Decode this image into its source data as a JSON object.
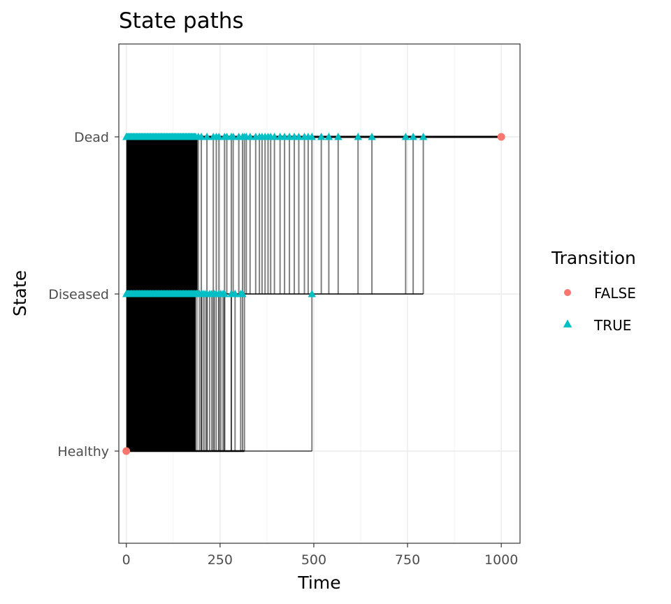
{
  "chart_data": {
    "type": "line",
    "title": "State paths",
    "xlabel": "Time",
    "ylabel": "State",
    "xlim": [
      -20,
      1050
    ],
    "x_ticks": [
      0,
      250,
      500,
      750,
      1000
    ],
    "states": [
      "Healthy",
      "Diseased",
      "Dead"
    ],
    "grid": true,
    "legend": {
      "title": "Transition",
      "placement": "right",
      "entries": [
        {
          "label": "FALSE",
          "shape": "circle",
          "color": "#F8766D"
        },
        {
          "label": "TRUE",
          "shape": "triangle",
          "color": "#00BFC4"
        }
      ]
    },
    "colors": {
      "false": "#F8766D",
      "true": "#00BFC4",
      "path": "#000000"
    },
    "dense_hd_range": [
      0,
      185
    ],
    "dense_dd_range": [
      0,
      190
    ],
    "healthy_to_diseased_times": [
      188,
      195,
      200,
      205,
      210,
      215,
      222,
      228,
      235,
      240,
      247,
      252,
      258,
      262,
      280,
      290,
      305,
      310,
      495
    ],
    "healthy_to_dead_times": [
      200,
      215,
      232,
      247,
      262,
      280,
      315
    ],
    "diseased_to_dead_times": [
      192,
      240,
      268,
      285,
      300,
      310,
      320,
      330,
      345,
      355,
      362,
      370,
      378,
      385,
      395,
      410,
      422,
      435,
      448,
      460,
      475,
      485,
      495,
      520,
      540,
      565,
      618,
      655,
      745,
      765,
      792
    ],
    "final_false_points": [
      {
        "time": 0,
        "state": "Healthy"
      },
      {
        "time": 1000,
        "state": "Dead"
      }
    ]
  }
}
